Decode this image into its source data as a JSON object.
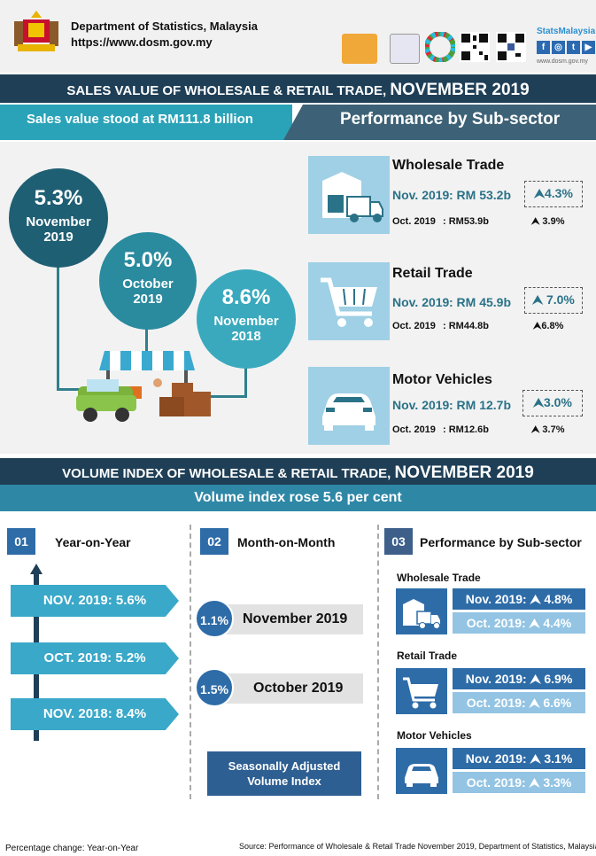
{
  "header": {
    "dept_name": "Department of Statistics, Malaysia",
    "dept_url": "https://www.dosm.gov.my",
    "stats_label": "StatsMalaysia",
    "stats_url": "www.dosm.gov.my",
    "social": [
      "f",
      "◎",
      "t",
      "▶"
    ]
  },
  "sales": {
    "banner_prefix": "SALES VALUE OF WHOLESALE & RETAIL TRADE, ",
    "banner_period": "NOVEMBER 2019",
    "headline": "Sales value stood at RM111.8 billion",
    "subsector_heading": "Performance by Sub-sector",
    "circles": [
      {
        "pct": "5.3%",
        "label1": "November",
        "label2": "2019",
        "color": "#1f5f73"
      },
      {
        "pct": "5.0%",
        "label1": "October",
        "label2": "2019",
        "color": "#2a8a9e"
      },
      {
        "pct": "8.6%",
        "label1": "November",
        "label2": "2018",
        "color": "#3aa9bd"
      }
    ],
    "subsectors": [
      {
        "title": "Wholesale Trade",
        "nov_label": "Nov. 2019",
        "nov_value": ": RM 53.2b",
        "nov_growth": "4.3%",
        "oct_label": "Oct. 2019",
        "oct_value": ": RM53.9b",
        "oct_growth": "3.9%",
        "icon": "truck-icon"
      },
      {
        "title": "Retail Trade",
        "nov_label": "Nov. 2019",
        "nov_value": ": RM 45.9b",
        "nov_growth": "7.0%",
        "oct_label": "Oct. 2019",
        "oct_value": ": RM44.8b",
        "oct_growth": "6.8%",
        "icon": "cart-icon"
      },
      {
        "title": "Motor Vehicles",
        "nov_label": "Nov. 2019",
        "nov_value": ": RM 12.7b",
        "nov_growth": "3.0%",
        "oct_label": "Oct. 2019",
        "oct_value": ": RM12.6b",
        "oct_growth": "3.7%",
        "icon": "car-icon"
      }
    ]
  },
  "volume": {
    "banner_prefix": "VOLUME INDEX OF WHOLESALE & RETAIL TRADE, ",
    "banner_period": "NOVEMBER 2019",
    "headline": "Volume index rose 5.6 per cent",
    "sections": [
      {
        "num": "01",
        "title": "Year-on-Year"
      },
      {
        "num": "02",
        "title": "Month-on-Month"
      },
      {
        "num": "03",
        "title": "Performance by Sub-sector"
      }
    ],
    "yoy": [
      {
        "label": "NOV.  2019: 5.6%"
      },
      {
        "label": "OCT. 2019: 5.2%"
      },
      {
        "label": "NOV. 2018: 8.4%"
      }
    ],
    "mom": [
      {
        "pct": "1.1%",
        "label": "November 2019"
      },
      {
        "pct": "1.5%",
        "label": "October 2019"
      }
    ],
    "sa_line1": "Seasonally Adjusted",
    "sa_line2": "Volume Index",
    "subsectors": [
      {
        "title": "Wholesale Trade",
        "nov": "Nov. 2019:  ⮝ 4.8%",
        "oct": "Oct. 2019:  ⮝ 4.4%"
      },
      {
        "title": "Retail Trade",
        "nov": "Nov. 2019:  ⮝ 6.9%",
        "oct": "Oct. 2019:  ⮝ 6.6%"
      },
      {
        "title": "Motor Vehicles",
        "nov": "Nov. 2019:  ⮝ 3.1%",
        "oct": "Oct. 2019:  ⮝ 3.3%"
      }
    ]
  },
  "footer": {
    "note": "Percentage change: Year-on-Year",
    "source": "Source: Performance of Wholesale & Retail Trade November 2019, Department of Statistics,  Malaysia"
  },
  "colors": {
    "dark_navy": "#1f3f57",
    "teal": "#2aa3b8",
    "blue": "#2e6ca8",
    "light_blue": "#93c4e3"
  }
}
